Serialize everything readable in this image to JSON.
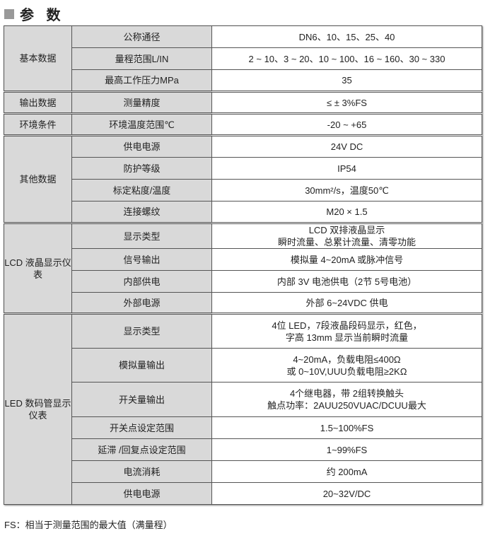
{
  "title": "参 数",
  "groups": [
    {
      "name": "基本数据",
      "rows": [
        {
          "key": "公称通径",
          "value": "DN6、10、15、25、40"
        },
        {
          "key": "量程范围L/IN",
          "value": "2 ~ 10、3 ~ 20、10 ~ 100、16 ~ 160、30 ~ 330"
        },
        {
          "key": "最高工作压力MPa",
          "value": "35"
        }
      ]
    },
    {
      "name": "输出数据",
      "rows": [
        {
          "key": "测量精度",
          "value": "≤ ± 3%FS"
        }
      ]
    },
    {
      "name": "环境条件",
      "rows": [
        {
          "key": "环境温度范围℃",
          "value": "-20 ~ +65"
        }
      ]
    },
    {
      "name": "其他数据",
      "rows": [
        {
          "key": "供电电源",
          "value": "24V DC"
        },
        {
          "key": "防护等级",
          "value": "IP54"
        },
        {
          "key": "标定粘度/温度",
          "value": "30mm²/s，温度50℃"
        },
        {
          "key": "连接螺纹",
          "value": "M20 × 1.5"
        }
      ]
    },
    {
      "name": "LCD 液晶显示仪表",
      "rows": [
        {
          "key": "显示类型",
          "value": "LCD 双排液晶显示",
          "value2": "瞬时流量、总累计流量、清零功能"
        },
        {
          "key": "信号输出",
          "value": "模拟量 4~20mA 或脉冲信号"
        },
        {
          "key": "内部供电",
          "value": "内部 3V 电池供电（2节 5号电池）"
        },
        {
          "key": "外部电源",
          "value": "外部 6~24VDC 供电"
        }
      ]
    },
    {
      "name": "LED 数码管显示仪表",
      "rows": [
        {
          "key": "显示类型",
          "value": "4位 LED，7段液晶段码显示，红色，",
          "value2": "字高 13mm 显示当前瞬时流量"
        },
        {
          "key": "模拟量输出",
          "value": "4~20mA，负载电阻≤400Ω",
          "value2": "或 0~10V,UUU负载电阻≥2KΩ"
        },
        {
          "key": "开关量输出",
          "value": "4个继电器，带 2组转换触头",
          "value2": "触点功率：2AUU250VUAC/DCUU最大"
        },
        {
          "key": "开关点设定范围",
          "value": "1.5~100%FS"
        },
        {
          "key": "延滞 /回复点设定范围",
          "value": "1~99%FS"
        },
        {
          "key": "电流消耗",
          "value": "约 200mA"
        },
        {
          "key": "供电电源",
          "value": "20~32V/DC"
        }
      ]
    }
  ],
  "footnote": "FS：相当于测量范围的最大值（满量程）"
}
